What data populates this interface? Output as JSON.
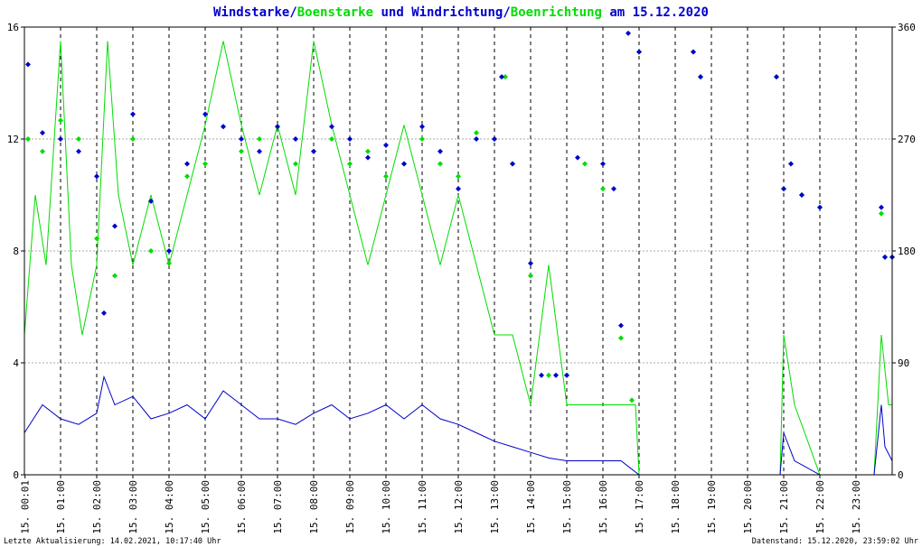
{
  "title": {
    "part1": "Windstarke",
    "sep1": "/",
    "part2": "Boenstarke",
    "part3": " und ",
    "part4": "Windrichtung",
    "sep2": "/",
    "part5": "Boenrichtung",
    "part6": " am 15.12.2020"
  },
  "footer": {
    "left": "Letzte Aktualisierung: 14.02.2021, 10:17:40 Uhr",
    "right": "Datenstand: 15.12.2020, 23:59:02 Uhr"
  },
  "colors": {
    "wind": "#0000cc",
    "gust": "#00dd00",
    "grid": "#000000",
    "hgrid": "#aaaaaa"
  },
  "chart_data": {
    "type": "line",
    "x_range_hours": [
      0,
      24
    ],
    "left_axis": {
      "ticks": [
        "0",
        "4",
        "8",
        "12",
        "16"
      ],
      "range": [
        0,
        16
      ]
    },
    "right_axis": {
      "ticks": [
        "0",
        "90",
        "180",
        "270",
        "360"
      ],
      "range": [
        0,
        360
      ]
    },
    "x_tick_labels": [
      "15. 00:01",
      "15. 01:00",
      "15. 02:00",
      "15. 03:00",
      "15. 04:00",
      "15. 05:00",
      "15. 06:00",
      "15. 07:00",
      "15. 08:00",
      "15. 09:00",
      "15. 10:00",
      "15. 11:00",
      "15. 12:00",
      "15. 13:00",
      "15. 14:00",
      "15. 15:00",
      "15. 16:00",
      "15. 17:00",
      "15. 18:00",
      "15. 19:00",
      "15. 20:00",
      "15. 21:00",
      "15. 22:00",
      "15. 23:00"
    ],
    "x_tick_hours": [
      0.017,
      1,
      2,
      3,
      4,
      5,
      6,
      7,
      8,
      9,
      10,
      11,
      12,
      13,
      14,
      15,
      16,
      17,
      18,
      19,
      20,
      21,
      22,
      23
    ],
    "series": [
      {
        "name": "Windstarke",
        "axis": "left",
        "style": "line",
        "points": [
          [
            0.0,
            1.5
          ],
          [
            0.5,
            2.5
          ],
          [
            1.0,
            2.0
          ],
          [
            1.5,
            1.8
          ],
          [
            2.0,
            2.2
          ],
          [
            2.2,
            3.5
          ],
          [
            2.5,
            2.5
          ],
          [
            3.0,
            2.8
          ],
          [
            3.5,
            2.0
          ],
          [
            4.0,
            2.2
          ],
          [
            4.5,
            2.5
          ],
          [
            5.0,
            2.0
          ],
          [
            5.5,
            3.0
          ],
          [
            6.0,
            2.5
          ],
          [
            6.5,
            2.0
          ],
          [
            7.0,
            2.0
          ],
          [
            7.5,
            1.8
          ],
          [
            8.0,
            2.2
          ],
          [
            8.5,
            2.5
          ],
          [
            9.0,
            2.0
          ],
          [
            9.5,
            2.2
          ],
          [
            10.0,
            2.5
          ],
          [
            10.5,
            2.0
          ],
          [
            11.0,
            2.5
          ],
          [
            11.5,
            2.0
          ],
          [
            12.0,
            1.8
          ],
          [
            12.5,
            1.5
          ],
          [
            13.0,
            1.2
          ],
          [
            13.5,
            1.0
          ],
          [
            14.0,
            0.8
          ],
          [
            14.5,
            0.6
          ],
          [
            15.0,
            0.5
          ],
          [
            15.5,
            0.5
          ],
          [
            16.0,
            0.5
          ],
          [
            16.5,
            0.5
          ],
          [
            16.8,
            0.2
          ],
          [
            17.0,
            0.0
          ],
          [
            20.9,
            0.0
          ],
          [
            21.0,
            1.5
          ],
          [
            21.3,
            0.5
          ],
          [
            22.0,
            0.0
          ],
          [
            23.5,
            0.0
          ],
          [
            23.7,
            2.5
          ],
          [
            23.8,
            1.0
          ],
          [
            24.0,
            0.5
          ]
        ]
      },
      {
        "name": "Boenstarke",
        "axis": "left",
        "style": "line",
        "points": [
          [
            0.0,
            5.0
          ],
          [
            0.3,
            10.0
          ],
          [
            0.6,
            7.5
          ],
          [
            1.0,
            15.5
          ],
          [
            1.3,
            7.5
          ],
          [
            1.6,
            5.0
          ],
          [
            2.0,
            7.5
          ],
          [
            2.3,
            15.5
          ],
          [
            2.6,
            10.0
          ],
          [
            3.0,
            7.5
          ],
          [
            3.5,
            10.0
          ],
          [
            4.0,
            7.5
          ],
          [
            4.5,
            10.0
          ],
          [
            5.0,
            12.5
          ],
          [
            5.5,
            15.5
          ],
          [
            6.0,
            12.5
          ],
          [
            6.5,
            10.0
          ],
          [
            7.0,
            12.5
          ],
          [
            7.5,
            10.0
          ],
          [
            8.0,
            15.5
          ],
          [
            8.5,
            12.5
          ],
          [
            9.0,
            10.0
          ],
          [
            9.5,
            7.5
          ],
          [
            10.0,
            10.0
          ],
          [
            10.5,
            12.5
          ],
          [
            11.0,
            10.0
          ],
          [
            11.5,
            7.5
          ],
          [
            12.0,
            10.0
          ],
          [
            12.5,
            7.5
          ],
          [
            13.0,
            5.0
          ],
          [
            13.5,
            5.0
          ],
          [
            14.0,
            2.5
          ],
          [
            14.5,
            7.5
          ],
          [
            15.0,
            2.5
          ],
          [
            15.5,
            2.5
          ],
          [
            16.0,
            2.5
          ],
          [
            16.5,
            2.5
          ],
          [
            16.9,
            2.5
          ],
          [
            17.0,
            0.0
          ],
          [
            20.9,
            0.0
          ],
          [
            21.0,
            5.0
          ],
          [
            21.3,
            2.5
          ],
          [
            22.0,
            0.0
          ],
          [
            23.5,
            0.0
          ],
          [
            23.7,
            5.0
          ],
          [
            23.9,
            2.5
          ],
          [
            24.0,
            2.5
          ]
        ]
      },
      {
        "name": "Windrichtung",
        "axis": "right",
        "style": "markers",
        "points": [
          [
            0.1,
            330
          ],
          [
            0.5,
            275
          ],
          [
            1.0,
            270
          ],
          [
            1.5,
            260
          ],
          [
            2.0,
            240
          ],
          [
            2.2,
            130
          ],
          [
            2.5,
            200
          ],
          [
            3.0,
            290
          ],
          [
            3.5,
            220
          ],
          [
            4.0,
            180
          ],
          [
            4.5,
            250
          ],
          [
            5.0,
            290
          ],
          [
            5.5,
            280
          ],
          [
            6.0,
            270
          ],
          [
            6.5,
            260
          ],
          [
            7.0,
            280
          ],
          [
            7.5,
            270
          ],
          [
            8.0,
            260
          ],
          [
            8.5,
            280
          ],
          [
            9.0,
            270
          ],
          [
            9.5,
            255
          ],
          [
            10.0,
            265
          ],
          [
            10.5,
            250
          ],
          [
            11.0,
            280
          ],
          [
            11.5,
            260
          ],
          [
            12.0,
            230
          ],
          [
            12.5,
            270
          ],
          [
            13.0,
            270
          ],
          [
            13.2,
            320
          ],
          [
            13.5,
            250
          ],
          [
            14.0,
            170
          ],
          [
            14.3,
            80
          ],
          [
            14.7,
            80
          ],
          [
            15.0,
            80
          ],
          [
            15.3,
            255
          ],
          [
            16.0,
            250
          ],
          [
            16.3,
            230
          ],
          [
            16.5,
            120
          ],
          [
            16.7,
            355
          ],
          [
            17.0,
            340
          ],
          [
            18.5,
            340
          ],
          [
            18.7,
            320
          ],
          [
            20.8,
            320
          ],
          [
            21.0,
            230
          ],
          [
            21.2,
            250
          ],
          [
            21.5,
            225
          ],
          [
            22.0,
            215
          ],
          [
            23.7,
            215
          ],
          [
            23.8,
            175
          ],
          [
            24.0,
            175
          ]
        ]
      },
      {
        "name": "Boenrichtung",
        "axis": "right",
        "style": "markers",
        "points": [
          [
            0.1,
            270
          ],
          [
            0.5,
            260
          ],
          [
            1.0,
            285
          ],
          [
            1.5,
            270
          ],
          [
            2.0,
            190
          ],
          [
            2.5,
            160
          ],
          [
            3.0,
            270
          ],
          [
            3.5,
            180
          ],
          [
            4.0,
            170
          ],
          [
            4.5,
            240
          ],
          [
            5.0,
            250
          ],
          [
            5.5,
            280
          ],
          [
            6.0,
            260
          ],
          [
            6.5,
            270
          ],
          [
            7.0,
            280
          ],
          [
            7.5,
            250
          ],
          [
            8.0,
            260
          ],
          [
            8.5,
            270
          ],
          [
            9.0,
            250
          ],
          [
            9.5,
            260
          ],
          [
            10.0,
            240
          ],
          [
            10.5,
            250
          ],
          [
            11.0,
            270
          ],
          [
            11.5,
            250
          ],
          [
            12.0,
            240
          ],
          [
            12.5,
            275
          ],
          [
            13.0,
            270
          ],
          [
            13.3,
            320
          ],
          [
            13.5,
            250
          ],
          [
            14.0,
            160
          ],
          [
            14.5,
            80
          ],
          [
            15.0,
            80
          ],
          [
            15.5,
            250
          ],
          [
            16.0,
            230
          ],
          [
            16.5,
            110
          ],
          [
            16.8,
            60
          ],
          [
            17.0,
            340
          ],
          [
            18.5,
            340
          ],
          [
            18.7,
            320
          ],
          [
            20.8,
            320
          ],
          [
            21.0,
            230
          ],
          [
            21.5,
            225
          ],
          [
            22.0,
            215
          ],
          [
            23.7,
            210
          ],
          [
            23.8,
            175
          ],
          [
            24.0,
            175
          ]
        ]
      }
    ]
  }
}
